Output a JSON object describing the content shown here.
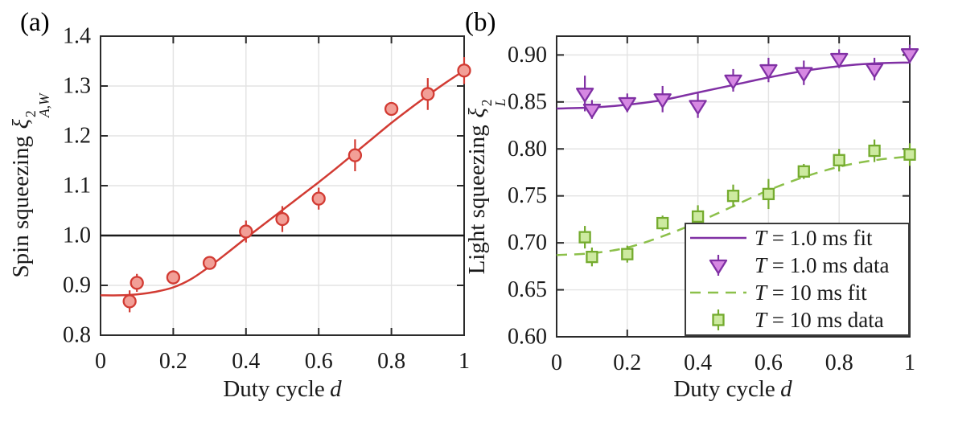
{
  "page": {
    "background": "#ffffff"
  },
  "panels": [
    {
      "letter": "(a)",
      "ylabel_prefix": "Spin squeezing",
      "ylabel_symbol": "ξ",
      "ylabel_sup": "2",
      "ylabel_sub": "A,W",
      "xlabel_text": "Duty cycle",
      "xlabel_var": "d"
    },
    {
      "letter": "(b)",
      "ylabel_prefix": "Light squeezing",
      "ylabel_symbol": "ξ",
      "ylabel_sup": "2",
      "ylabel_sub": "L",
      "xlabel_text": "Duty cycle",
      "xlabel_var": "d"
    }
  ],
  "colors": {
    "red": "#d23b33",
    "red_fill": "#f29f97",
    "purple": "#8030a4",
    "purple_fill": "#d688e2",
    "green": "#74ab2e",
    "green_line": "#8cc04a",
    "green_fill": "#cdeaa0",
    "axis": "#2b2b2b",
    "grid": "#e3e3e3",
    "text": "#1a1a1a",
    "reference": "#1a1a1a",
    "legend_border": "#3a3a3a"
  },
  "chart_data": [
    {
      "type": "scatter",
      "panel": "a",
      "title": "(a)",
      "xlabel": "Duty cycle d",
      "ylabel": "Spin squeezing xi^2_(A,W)",
      "xlim": [
        0,
        1
      ],
      "ylim": [
        0.8,
        1.4
      ],
      "xticks": [
        0,
        0.2,
        0.4,
        0.6,
        0.8,
        1
      ],
      "xtick_labels": [
        "0",
        "0.2",
        "0.4",
        "0.6",
        "0.8",
        "1"
      ],
      "yticks": [
        0.8,
        0.9,
        1.0,
        1.1,
        1.2,
        1.3,
        1.4
      ],
      "ytick_labels": [
        "0.8",
        "0.9",
        "1.0",
        "1.1",
        "1.2",
        "1.3",
        "1.4"
      ],
      "grid": true,
      "reference_line_y": 1.0,
      "series": [
        {
          "name": "spin-squeezing-fit",
          "kind": "line",
          "style": "solid",
          "color_key": "red",
          "x": [
            0,
            0.05,
            0.1,
            0.15,
            0.2,
            0.25,
            0.3,
            0.35,
            0.4,
            0.45,
            0.5,
            0.55,
            0.6,
            0.65,
            0.7,
            0.75,
            0.8,
            0.85,
            0.9,
            0.95,
            1.0
          ],
          "y": [
            0.88,
            0.88,
            0.882,
            0.887,
            0.896,
            0.913,
            0.938,
            0.966,
            0.995,
            1.023,
            1.051,
            1.079,
            1.107,
            1.136,
            1.166,
            1.196,
            1.226,
            1.254,
            1.281,
            1.307,
            1.331
          ]
        },
        {
          "name": "spin-squeezing-data",
          "kind": "scatter",
          "marker": "circle",
          "edge_key": "red",
          "fill_key": "red_fill",
          "x": [
            0.08,
            0.1,
            0.2,
            0.3,
            0.4,
            0.5,
            0.6,
            0.7,
            0.8,
            0.9,
            1.0
          ],
          "y": [
            0.868,
            0.905,
            0.916,
            0.945,
            1.008,
            1.033,
            1.074,
            1.161,
            1.254,
            1.284,
            1.331
          ],
          "yerr": [
            0.022,
            0.018,
            0.014,
            0.01,
            0.022,
            0.026,
            0.022,
            0.032,
            0.013,
            0.032,
            0.027
          ]
        }
      ]
    },
    {
      "type": "scatter",
      "panel": "b",
      "title": "(b)",
      "xlabel": "Duty cycle d",
      "ylabel": "Light squeezing xi^2_L",
      "xlim": [
        0,
        1
      ],
      "ylim": [
        0.6,
        0.92
      ],
      "xticks": [
        0,
        0.2,
        0.4,
        0.6,
        0.8,
        1
      ],
      "xtick_labels": [
        "0",
        "0.2",
        "0.4",
        "0.6",
        "0.8",
        "1"
      ],
      "yticks": [
        0.6,
        0.65,
        0.7,
        0.75,
        0.8,
        0.85,
        0.9
      ],
      "ytick_labels": [
        "0.60",
        "0.65",
        "0.70",
        "0.75",
        "0.80",
        "0.85",
        "0.90"
      ],
      "grid": true,
      "legend_position": "bottom-right",
      "series": [
        {
          "name": "light-squeezing-fit-1ms",
          "kind": "line",
          "style": "solid",
          "color_key": "purple",
          "x": [
            0,
            0.1,
            0.2,
            0.3,
            0.4,
            0.5,
            0.6,
            0.7,
            0.8,
            0.9,
            1.0
          ],
          "y": [
            0.843,
            0.844,
            0.847,
            0.852,
            0.86,
            0.868,
            0.876,
            0.883,
            0.888,
            0.891,
            0.892
          ]
        },
        {
          "name": "light-squeezing-data-1ms",
          "kind": "scatter",
          "marker": "triangle-down",
          "edge_key": "purple",
          "fill_key": "purple_fill",
          "x": [
            0.08,
            0.1,
            0.2,
            0.3,
            0.4,
            0.5,
            0.6,
            0.7,
            0.8,
            0.9,
            1.0
          ],
          "y": [
            0.859,
            0.842,
            0.849,
            0.853,
            0.846,
            0.873,
            0.884,
            0.881,
            0.896,
            0.885,
            0.901
          ],
          "yerr": [
            0.019,
            0.01,
            0.01,
            0.014,
            0.013,
            0.012,
            0.013,
            0.013,
            0.01,
            0.012,
            0.01
          ]
        },
        {
          "name": "light-squeezing-fit-10ms",
          "kind": "line",
          "style": "dashed",
          "color_key": "green_line",
          "x": [
            0,
            0.1,
            0.2,
            0.3,
            0.4,
            0.5,
            0.6,
            0.7,
            0.8,
            0.9,
            1.0
          ],
          "y": [
            0.687,
            0.689,
            0.695,
            0.707,
            0.722,
            0.739,
            0.756,
            0.77,
            0.781,
            0.788,
            0.792
          ]
        },
        {
          "name": "light-squeezing-data-10ms",
          "kind": "scatter",
          "marker": "square",
          "edge_key": "green",
          "fill_key": "green_fill",
          "x": [
            0.08,
            0.1,
            0.2,
            0.3,
            0.4,
            0.5,
            0.6,
            0.7,
            0.8,
            0.9,
            1.0
          ],
          "y": [
            0.706,
            0.685,
            0.688,
            0.721,
            0.728,
            0.75,
            0.752,
            0.776,
            0.788,
            0.798,
            0.794
          ],
          "yerr": [
            0.012,
            0.01,
            0.009,
            0.008,
            0.012,
            0.012,
            0.016,
            0.008,
            0.012,
            0.012,
            0.012
          ]
        }
      ],
      "legend": [
        {
          "label": "T = 1.0 ms fit",
          "icon": "line",
          "color_key": "purple"
        },
        {
          "label": "T = 1.0 ms data",
          "icon": "triangle-down",
          "edge_key": "purple",
          "fill_key": "purple_fill"
        },
        {
          "label": "T = 10 ms fit",
          "icon": "dashed-line",
          "color_key": "green_line"
        },
        {
          "label": "T = 10 ms data",
          "icon": "square",
          "edge_key": "green",
          "fill_key": "green_fill"
        }
      ]
    }
  ]
}
